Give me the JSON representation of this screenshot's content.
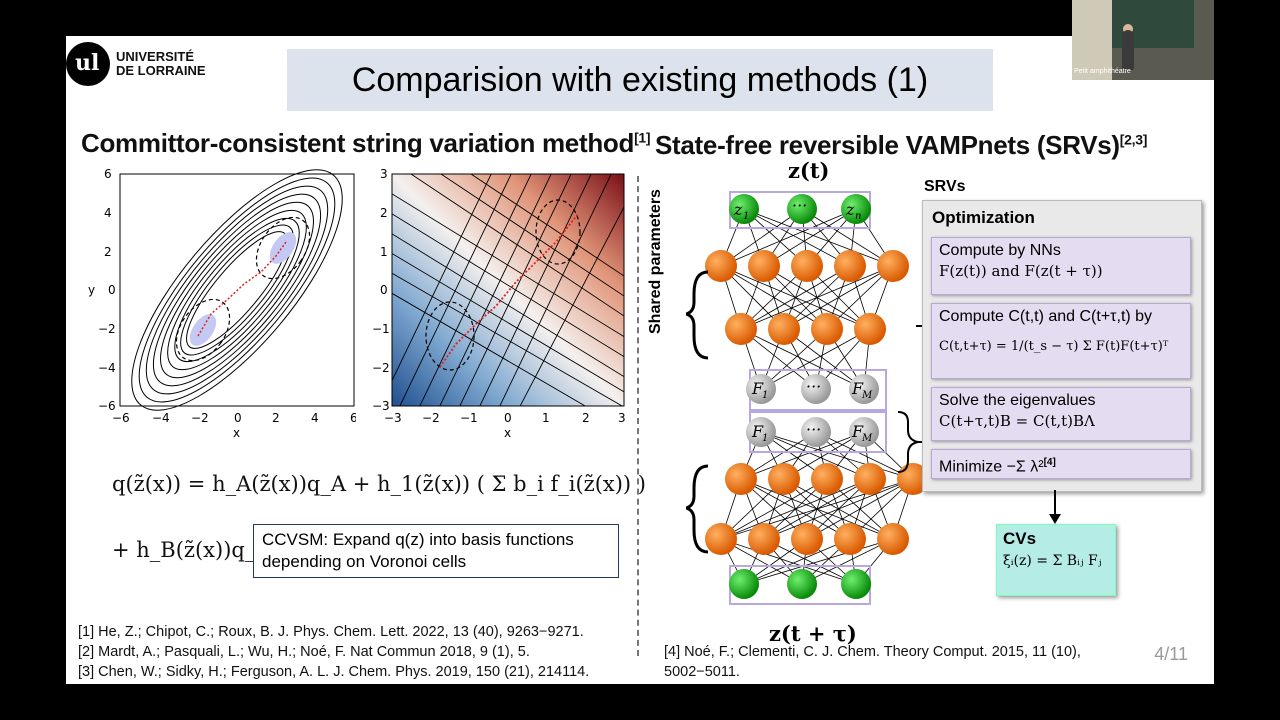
{
  "university": {
    "line1": "UNIVERSITÉ",
    "line2": "DE LORRAINE",
    "logo_mark": "ul"
  },
  "title": "Comparision with existing methods (1)",
  "left": {
    "heading": "Committor-consistent string variation method",
    "heading_sup": "[1]",
    "plot1": {
      "xlabel": "x",
      "ylabel": "y",
      "xticks": [
        "−6",
        "−4",
        "−2",
        "0",
        "2",
        "4",
        "6"
      ],
      "yticks": [
        "6",
        "4",
        "2",
        "0",
        "−2",
        "−4",
        "−6"
      ]
    },
    "plot2": {
      "xlabel": "x",
      "xticks": [
        "−3",
        "−2",
        "−1",
        "0",
        "1",
        "2",
        "3"
      ],
      "yticks": [
        "3",
        "2",
        "1",
        "0",
        "−1",
        "−2",
        "−3"
      ]
    },
    "eq_line1": "q(z̃(x)) = h_A(z̃(x))q_A + h_1(z̃(x)) ( Σ b_i f_i(z̃(x)) )",
    "eq_line2": "+ h_B(z̃(x))q_B",
    "ccvsm_text1": "CCVSM: Expand q(z) into basis functions",
    "ccvsm_text2": "depending on Voronoi cells"
  },
  "right": {
    "heading": "State-free reversible VAMPnets (SRVs)",
    "heading_sup": "[2,3]",
    "z_top": "z(t)",
    "z_bottom": "z(t + τ)",
    "shared_params": "Shared parameters",
    "srvs_label": "SRVs",
    "optimization": "Optimization",
    "step1_a": "Compute by NNs",
    "step1_b": "F(z(t)) and F(z(t + τ))",
    "step2_a": "Compute C(t,t) and C(t+τ,t) by",
    "step2_b": "C(t,t+τ) = 1/(t_s − τ) Σ F(t)F(t+τ)ᵀ",
    "step3_a": "Solve the eigenvalues",
    "step3_b": "C(t+τ,t)B = C(t,t)BΛ",
    "step4": "Minimize −Σ λ²",
    "step4_sup": "[4]",
    "cvs_title": "CVs",
    "cvs_eq": "ξᵢ(z) = Σ Bᵢⱼ Fⱼ"
  },
  "refs": {
    "r1": "[1] He, Z.; Chipot, C.; Roux, B. J. Phys. Chem. Lett. 2022, 13 (40), 9263−9271.",
    "r2": "[2] Mardt, A.; Pasquali, L.; Wu, H.; Noé, F. Nat Commun 2018, 9 (1), 5.",
    "r3": "[3] Chen, W.; Sidky, H.; Ferguson, A. L. J. Chem. Phys. 2019, 150 (21), 214114.",
    "r4a": "[4] Noé, F.; Clementi, C. J. Chem. Theory Comput. 2015, 11 (10),",
    "r4b": "5002−5011."
  },
  "page": "4/11",
  "camera": {
    "caption": "Petit amphithéatre"
  },
  "colors": {
    "title_bg": "#dde3ec",
    "node_orange": "#ee7a12",
    "node_green": "#1fae1f",
    "node_gray": "#c8c8c8",
    "panel_purple": "#e4dcf0",
    "cvs_teal": "#b6ece6"
  }
}
